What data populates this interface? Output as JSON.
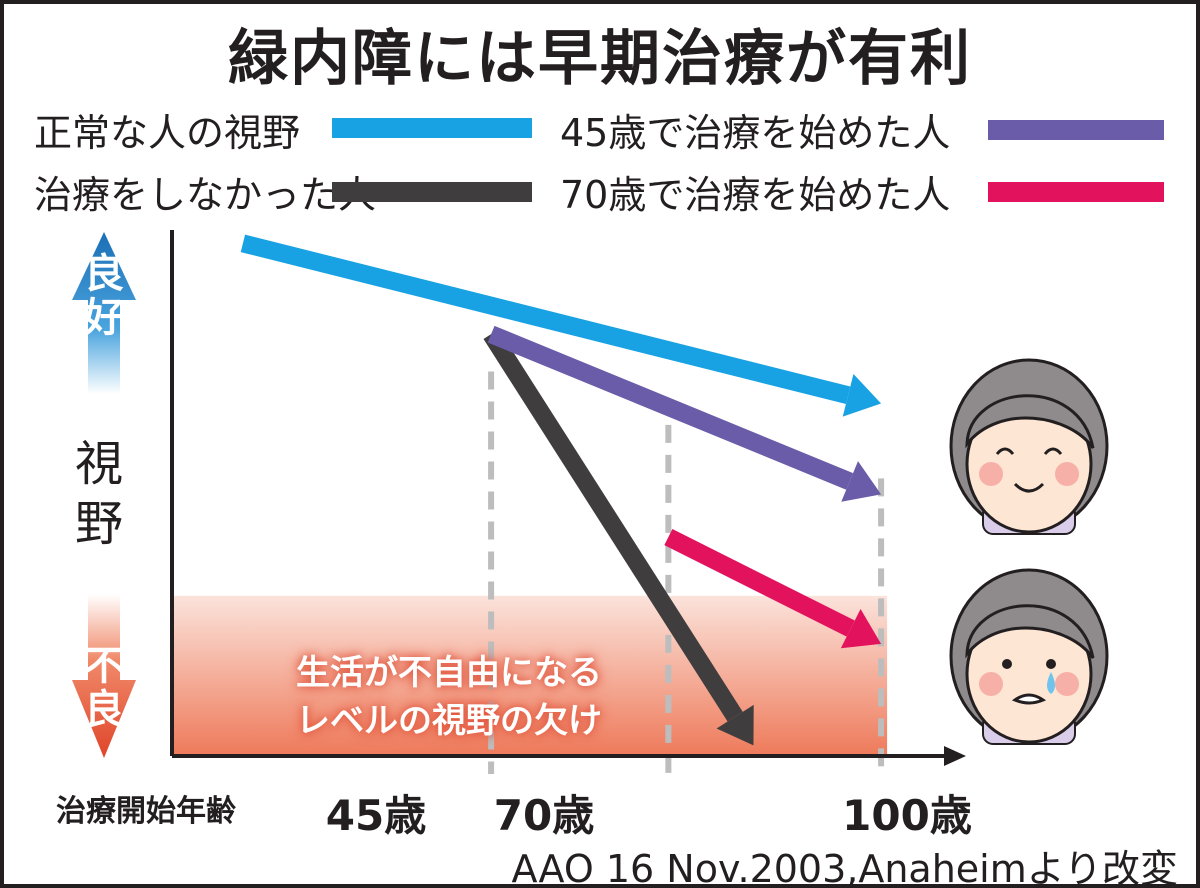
{
  "chart_data": {
    "type": "line",
    "title": "緑内障には早期治療が有利",
    "ylabel": "視野",
    "y_good_label": "良好",
    "y_bad_label": "不良",
    "xlabel": "治療開始年齢",
    "x_ticks": [
      "45歳",
      "70歳",
      "100歳"
    ],
    "legend_placement": "top",
    "series": [
      {
        "name": "正常な人の視野",
        "color": "#18a2e3",
        "points": [
          [
            10,
            96
          ],
          [
            100,
            66
          ]
        ]
      },
      {
        "name": "治療をしなかった人",
        "color": "#403d3e",
        "points": [
          [
            45,
            79
          ],
          [
            82,
            2
          ]
        ]
      },
      {
        "name": "45歳で治療を始めた人",
        "color": "#6a5ca8",
        "points": [
          [
            45,
            79
          ],
          [
            100,
            49
          ]
        ]
      },
      {
        "name": "70歳で治療を始めた人",
        "color": "#e3125c",
        "points": [
          [
            70,
            41
          ],
          [
            100,
            21
          ]
        ]
      }
    ],
    "x_ticks_values": [
      45,
      70,
      100
    ],
    "xlim": [
      0,
      110
    ],
    "ylim": [
      0,
      100
    ],
    "impaired_zone": {
      "y_max": 30,
      "label_line1": "生活が不自由になる",
      "label_line2": "レベルの視野の欠け"
    },
    "source": "AAO 16 Nov.2003,Anaheimより改変"
  }
}
